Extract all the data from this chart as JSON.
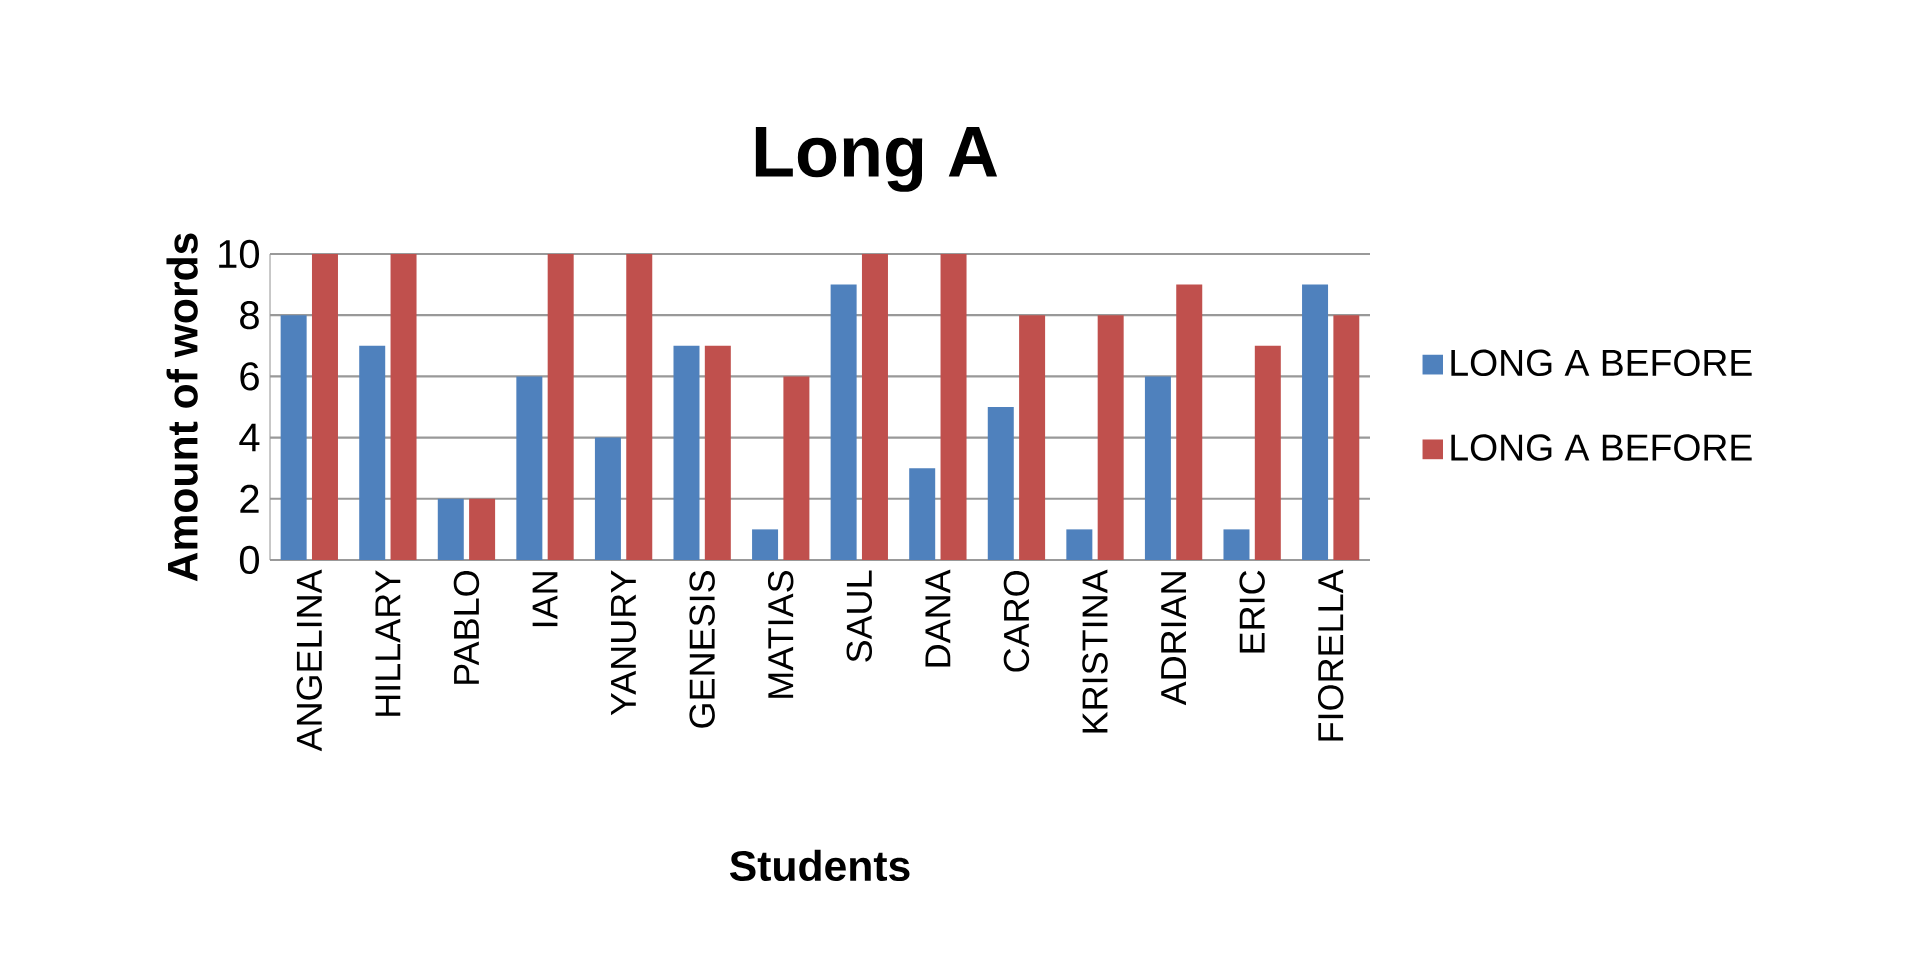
{
  "chart_data": {
    "type": "bar",
    "title": "Long A",
    "xlabel": "Students",
    "ylabel": "Amount of words",
    "categories": [
      "ANGELINA",
      "HILLARY",
      "PABLO",
      "IAN",
      "YANURY",
      "GENESIS",
      "MATIAS",
      "SAUL",
      "DANA",
      "CARO",
      "KRISTINA",
      "ADRIAN",
      "ERIC",
      "FIORELLA"
    ],
    "series": [
      {
        "name": "LONG A BEFORE",
        "color": "#4f81bd",
        "values": [
          8,
          7,
          2,
          6,
          4,
          7,
          1,
          9,
          3,
          5,
          1,
          6,
          1,
          9
        ]
      },
      {
        "name": "LONG A BEFORE",
        "color": "#c0504d",
        "values": [
          10,
          10,
          2,
          10,
          10,
          7,
          6,
          10,
          10,
          8,
          8,
          9,
          7,
          8
        ]
      }
    ],
    "ylim": [
      0,
      10
    ],
    "yticks": [
      0,
      2,
      4,
      6,
      8,
      10
    ],
    "grid": "y",
    "legend": "right"
  }
}
